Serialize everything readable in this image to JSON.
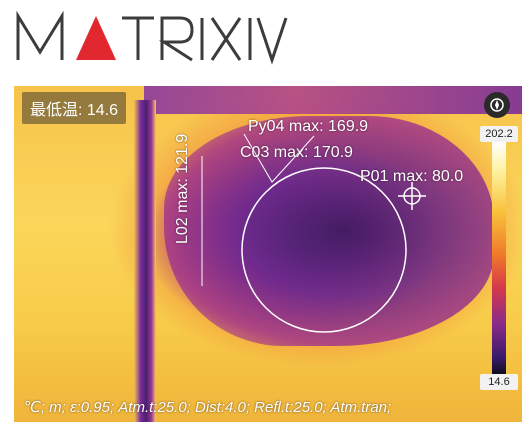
{
  "logo": {
    "text": "MATRIX IV"
  },
  "overlay": {
    "min_temp": "最低温:  14.6",
    "py04": "Py04 max: 169.9",
    "c03": "C03 max: 170.9",
    "p01": "P01 max: 80.0",
    "l02": "L02 max: 121.9",
    "params": "℃; m; ε:0.95; Atm.t:25.0; Dist:4.0; Refl.t:25.0; Atm.tran;"
  },
  "scale": {
    "max": "202.2",
    "min": "14.6"
  },
  "icons": {
    "compass": "compass-icon",
    "crosshair": "crosshair-icon"
  },
  "colors": {
    "logo_red": "#e0282e",
    "logo_gray": "#3c3c3c"
  }
}
